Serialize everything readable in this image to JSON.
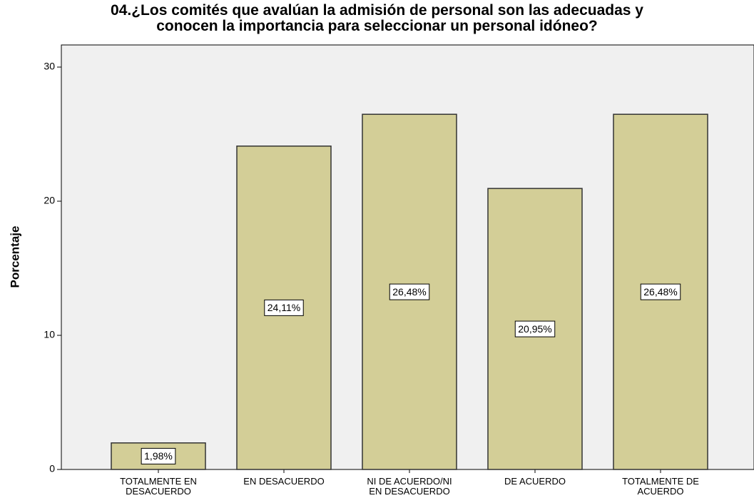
{
  "chart_data": {
    "type": "bar",
    "title": "04.¿Los comités que avalúan la admisión de personal son las adecuadas y\nconocen la importancia para seleccionar un personal idóneo?",
    "y_label": "Porcentaje",
    "categories": [
      "TOTALMENTE EN\nDESACUERDO",
      "EN DESACUERDO",
      "NI DE ACUERDO/NI\nEN DESACUERDO",
      "DE ACUERDO",
      "TOTALMENTE DE\nACUERDO"
    ],
    "values": [
      1.98,
      24.11,
      26.48,
      20.95,
      26.48
    ],
    "value_labels": [
      "1,98%",
      "24,11%",
      "26,48%",
      "20,95%",
      "26,48%"
    ],
    "color": "#d3ce97",
    "ylim": [
      0,
      31.65
    ],
    "yticks": [
      0,
      10,
      20,
      30
    ],
    "grid": false
  }
}
